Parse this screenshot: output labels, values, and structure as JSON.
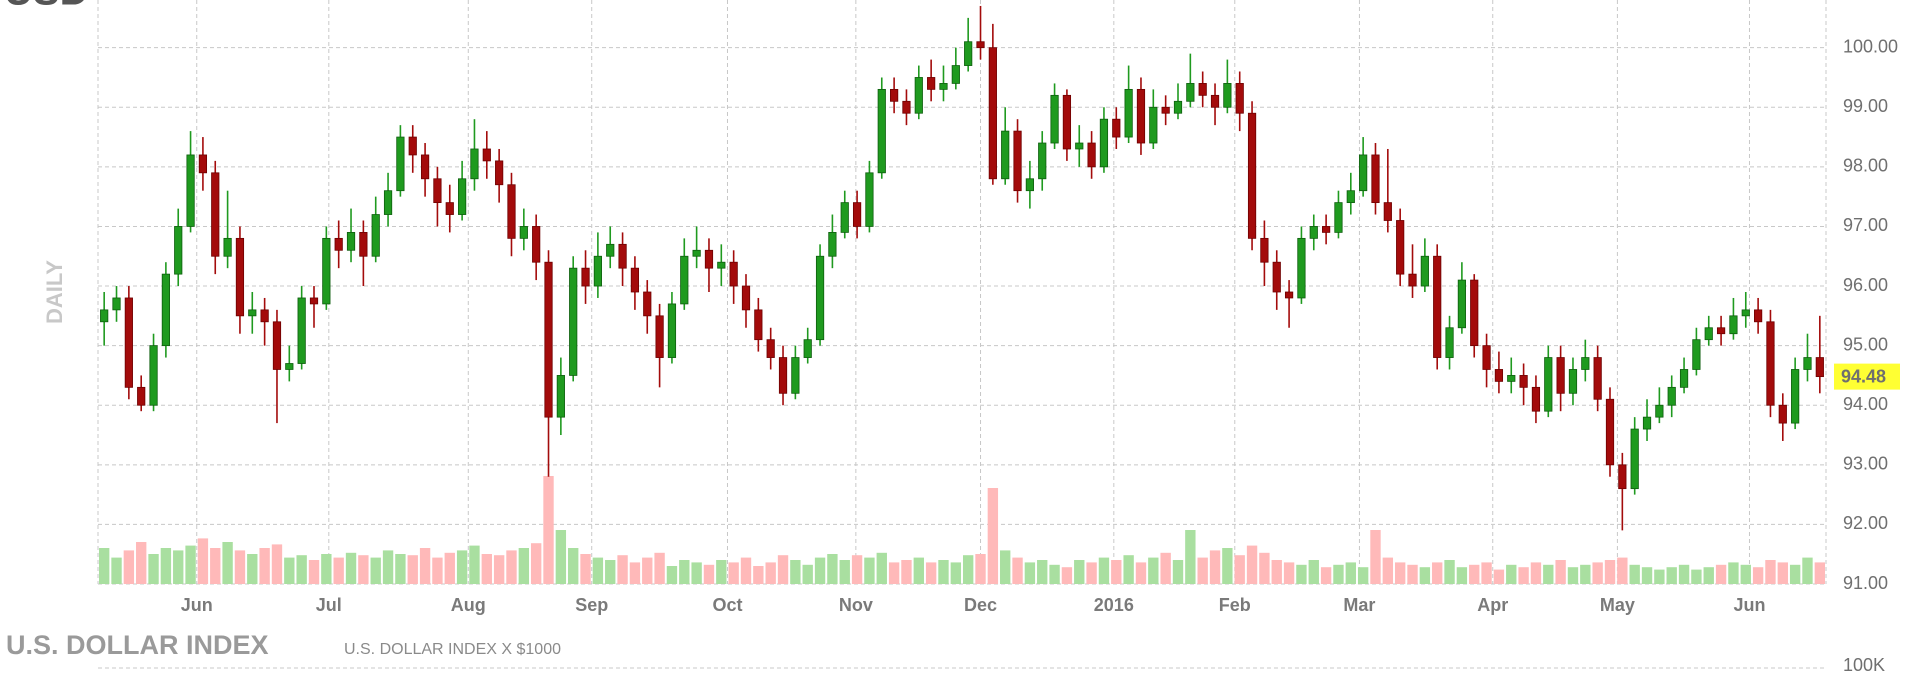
{
  "chart_data": {
    "type": "candlestick",
    "symbol": "USD",
    "period_label": "DAILY",
    "up_color": "#1f9a1f",
    "down_color": "#a30b0b",
    "xlim": [
      -0.5,
      139.5
    ],
    "xticks": [
      {
        "value": 7.5,
        "label": "Jun"
      },
      {
        "value": 18.2,
        "label": "Jul"
      },
      {
        "value": 29.5,
        "label": "Aug"
      },
      {
        "value": 39.5,
        "label": "Sep"
      },
      {
        "value": 50.5,
        "label": "Oct"
      },
      {
        "value": 60.9,
        "label": "Nov"
      },
      {
        "value": 71.0,
        "label": "Dec"
      },
      {
        "value": 81.8,
        "label": "2016"
      },
      {
        "value": 91.6,
        "label": "Feb"
      },
      {
        "value": 101.7,
        "label": "Mar"
      },
      {
        "value": 112.5,
        "label": "Apr"
      },
      {
        "value": 122.6,
        "label": "May"
      },
      {
        "value": 133.3,
        "label": "Jun"
      }
    ],
    "ylim": [
      91,
      100.8
    ],
    "yticks": [
      {
        "value": 91,
        "label": "91.00"
      },
      {
        "value": 92,
        "label": "92.00"
      },
      {
        "value": 93,
        "label": "93.00"
      },
      {
        "value": 94,
        "label": "94.00"
      },
      {
        "value": 95,
        "label": "95.00"
      },
      {
        "value": 96,
        "label": "96.00"
      },
      {
        "value": 97,
        "label": "97.00"
      },
      {
        "value": 98,
        "label": "98.00"
      },
      {
        "value": 99,
        "label": "99.00"
      },
      {
        "value": 100,
        "label": "100.00"
      }
    ],
    "grid": true,
    "highlight_color": "#ffff33",
    "ohlc": {
      "open": [
        95.4,
        95.6,
        95.8,
        94.3,
        94.0,
        95.0,
        96.2,
        97.0,
        98.2,
        97.9,
        96.5,
        96.8,
        95.5,
        95.6,
        95.4,
        94.6,
        94.7,
        95.8,
        95.7,
        96.8,
        96.6,
        96.9,
        96.5,
        97.2,
        97.6,
        98.5,
        98.2,
        97.8,
        97.4,
        97.2,
        97.8,
        98.3,
        98.1,
        97.7,
        96.8,
        97.0,
        96.4,
        93.8,
        94.5,
        96.3,
        96.0,
        96.5,
        96.7,
        96.3,
        95.9,
        95.5,
        94.8,
        95.7,
        96.5,
        96.6,
        96.3,
        96.4,
        96.0,
        95.6,
        95.1,
        94.8,
        94.2,
        94.8,
        95.1,
        96.5,
        96.9,
        97.4,
        97.0,
        97.9,
        99.3,
        99.1,
        98.9,
        99.5,
        99.3,
        99.4,
        99.7,
        100.1,
        100.0,
        97.8,
        98.6,
        97.6,
        97.8,
        98.4,
        99.2,
        98.3,
        98.4,
        98.0,
        98.8,
        98.5,
        99.3,
        98.4,
        99.0,
        98.9,
        99.1,
        99.4,
        99.2,
        99.0,
        99.4,
        98.9,
        96.8,
        96.4,
        95.9,
        95.8,
        96.8,
        97.0,
        96.9,
        97.4,
        97.6,
        98.2,
        97.4,
        97.1,
        96.2,
        96.0,
        96.5,
        94.8,
        95.3,
        96.1,
        95.0,
        94.6,
        94.4,
        94.5,
        94.3,
        93.9,
        94.8,
        94.2,
        94.6,
        94.8,
        94.1,
        93.0,
        92.6,
        93.6,
        93.8,
        94.0,
        94.3,
        94.6,
        95.1,
        95.3,
        95.2,
        95.5,
        95.6,
        95.4,
        94.0,
        93.7,
        94.6,
        94.8
      ],
      "high": [
        95.9,
        96.0,
        96.0,
        94.5,
        95.2,
        96.4,
        97.3,
        98.6,
        98.5,
        98.1,
        97.6,
        97.0,
        95.9,
        95.8,
        95.6,
        95.0,
        96.0,
        96.0,
        97.0,
        97.1,
        97.3,
        97.1,
        97.5,
        97.9,
        98.7,
        98.7,
        98.4,
        98.0,
        97.7,
        98.1,
        98.8,
        98.6,
        98.3,
        97.9,
        97.3,
        97.2,
        96.6,
        94.8,
        96.5,
        96.6,
        96.9,
        97.0,
        96.9,
        96.5,
        96.1,
        95.7,
        95.9,
        96.8,
        97.0,
        96.8,
        96.7,
        96.6,
        96.2,
        95.8,
        95.3,
        95.0,
        95.0,
        95.3,
        96.7,
        97.2,
        97.6,
        97.6,
        98.1,
        99.5,
        99.5,
        99.3,
        99.7,
        99.8,
        99.7,
        100.0,
        100.5,
        100.7,
        100.4,
        99.0,
        98.8,
        98.1,
        98.6,
        99.4,
        99.3,
        98.7,
        98.6,
        99.0,
        99.0,
        99.7,
        99.5,
        99.3,
        99.2,
        99.4,
        99.9,
        99.6,
        99.4,
        99.8,
        99.6,
        99.1,
        97.1,
        96.6,
        96.1,
        97.0,
        97.2,
        97.2,
        97.6,
        97.9,
        98.5,
        98.4,
        98.3,
        97.3,
        96.7,
        96.8,
        96.7,
        95.5,
        96.4,
        96.2,
        95.2,
        94.9,
        94.8,
        94.7,
        94.5,
        95.0,
        95.0,
        94.8,
        95.1,
        95.0,
        94.3,
        93.2,
        93.8,
        94.1,
        94.3,
        94.5,
        94.8,
        95.3,
        95.5,
        95.5,
        95.8,
        95.9,
        95.8,
        95.6,
        94.2,
        94.8,
        95.2,
        95.5
      ],
      "low": [
        95.0,
        95.4,
        94.1,
        93.9,
        93.9,
        94.8,
        96.0,
        96.9,
        97.6,
        96.2,
        96.3,
        95.2,
        95.2,
        95.0,
        93.7,
        94.4,
        94.6,
        95.3,
        95.6,
        96.3,
        96.4,
        96.0,
        96.4,
        97.0,
        97.5,
        97.9,
        97.5,
        97.0,
        96.9,
        97.1,
        97.6,
        97.8,
        97.4,
        96.5,
        96.6,
        96.1,
        92.8,
        93.5,
        94.4,
        95.7,
        95.8,
        96.3,
        96.0,
        95.6,
        95.2,
        94.3,
        94.7,
        95.6,
        96.3,
        95.9,
        96.0,
        95.7,
        95.3,
        94.9,
        94.6,
        94.0,
        94.1,
        94.7,
        95.0,
        96.3,
        96.8,
        96.8,
        96.9,
        97.8,
        98.9,
        98.7,
        98.8,
        99.1,
        99.1,
        99.3,
        99.6,
        99.8,
        97.7,
        97.7,
        97.4,
        97.3,
        97.6,
        98.3,
        98.1,
        98.0,
        97.8,
        97.9,
        98.3,
        98.4,
        98.2,
        98.3,
        98.7,
        98.8,
        99.0,
        99.0,
        98.7,
        98.9,
        98.6,
        96.6,
        96.0,
        95.6,
        95.3,
        95.7,
        96.6,
        96.7,
        96.8,
        97.2,
        97.5,
        97.2,
        96.9,
        96.0,
        95.8,
        95.9,
        94.6,
        94.6,
        95.2,
        94.8,
        94.3,
        94.2,
        94.2,
        94.0,
        93.7,
        93.8,
        93.9,
        94.0,
        94.4,
        93.9,
        92.8,
        91.9,
        92.5,
        93.4,
        93.7,
        93.8,
        94.2,
        94.5,
        95.0,
        95.0,
        95.1,
        95.3,
        95.2,
        93.8,
        93.4,
        93.6,
        94.4,
        94.2
      ],
      "close": [
        95.6,
        95.8,
        94.3,
        94.0,
        95.0,
        96.2,
        97.0,
        98.2,
        97.9,
        96.5,
        96.8,
        95.5,
        95.6,
        95.4,
        94.6,
        94.7,
        95.8,
        95.7,
        96.8,
        96.6,
        96.9,
        96.5,
        97.2,
        97.6,
        98.5,
        98.2,
        97.8,
        97.4,
        97.2,
        97.8,
        98.3,
        98.1,
        97.7,
        96.8,
        97.0,
        96.4,
        93.8,
        94.5,
        96.3,
        96.0,
        96.5,
        96.7,
        96.3,
        95.9,
        95.5,
        94.8,
        95.7,
        96.5,
        96.6,
        96.3,
        96.4,
        96.0,
        95.6,
        95.1,
        94.8,
        94.2,
        94.8,
        95.1,
        96.5,
        96.9,
        97.4,
        97.0,
        97.9,
        99.3,
        99.1,
        98.9,
        99.5,
        99.3,
        99.4,
        99.7,
        100.1,
        100.0,
        97.8,
        98.6,
        97.6,
        97.8,
        98.4,
        99.2,
        98.3,
        98.4,
        98.0,
        98.8,
        98.5,
        99.3,
        98.4,
        99.0,
        98.9,
        99.1,
        99.4,
        99.2,
        99.0,
        99.4,
        98.9,
        96.8,
        96.4,
        95.9,
        95.8,
        96.8,
        97.0,
        96.9,
        97.4,
        97.6,
        98.2,
        97.4,
        97.1,
        96.2,
        96.0,
        96.5,
        94.8,
        95.3,
        96.1,
        95.0,
        94.6,
        94.4,
        94.5,
        94.3,
        93.9,
        94.8,
        94.2,
        94.6,
        94.8,
        94.1,
        93.0,
        92.6,
        93.6,
        93.8,
        94.0,
        94.3,
        94.6,
        95.1,
        95.3,
        95.2,
        95.5,
        95.6,
        95.4,
        94.0,
        93.7,
        94.6,
        94.8,
        94.48
      ]
    },
    "volume": {
      "ylim": [
        0,
        100
      ],
      "up_color": "#a9dfa0",
      "down_color": "#ffb9b9",
      "values": [
        30,
        22,
        28,
        35,
        25,
        30,
        28,
        32,
        38,
        30,
        35,
        28,
        25,
        30,
        33,
        22,
        24,
        20,
        25,
        22,
        26,
        24,
        22,
        28,
        25,
        24,
        30,
        22,
        26,
        28,
        32,
        25,
        24,
        28,
        30,
        34,
        90,
        45,
        30,
        25,
        22,
        20,
        24,
        18,
        22,
        26,
        15,
        20,
        18,
        16,
        20,
        18,
        22,
        15,
        18,
        24,
        20,
        16,
        22,
        25,
        20,
        24,
        22,
        26,
        18,
        20,
        22,
        18,
        20,
        18,
        24,
        25,
        80,
        28,
        22,
        18,
        20,
        16,
        14,
        20,
        18,
        22,
        20,
        24,
        18,
        22,
        26,
        20,
        45,
        22,
        28,
        30,
        24,
        32,
        26,
        20,
        18,
        16,
        20,
        14,
        16,
        18,
        14,
        45,
        22,
        18,
        16,
        14,
        18,
        20,
        14,
        16,
        18,
        12,
        16,
        14,
        18,
        16,
        20,
        14,
        16,
        18,
        20,
        22,
        16,
        14,
        12,
        14,
        16,
        12,
        14,
        16,
        18,
        16,
        14,
        20,
        18,
        16,
        22,
        18
      ]
    },
    "lower_panel": {
      "title": "U.S. DOLLAR INDEX",
      "subtitle": "U.S. DOLLAR INDEX X $1000",
      "yticks": [
        {
          "value": 100000,
          "label": "100K"
        }
      ]
    }
  }
}
